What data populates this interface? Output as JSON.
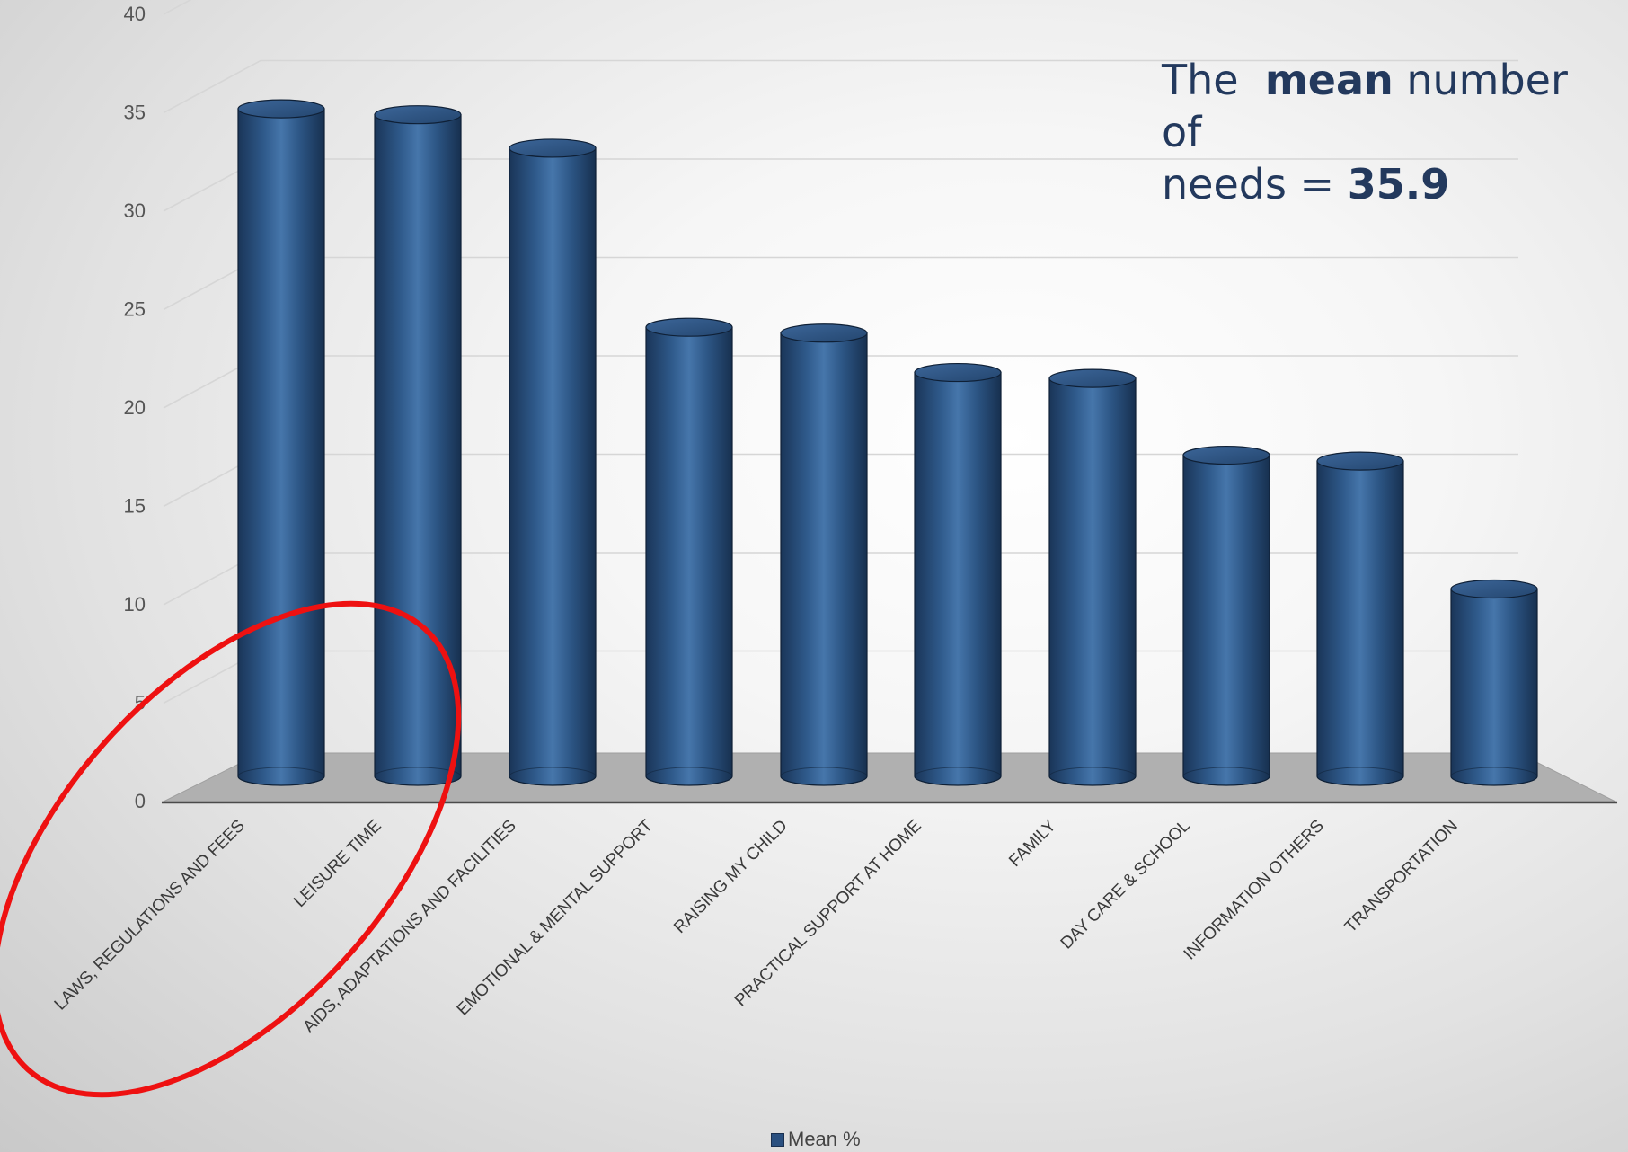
{
  "chart_data": {
    "type": "bar",
    "style": "3d-cylinder",
    "categories": [
      "LAWS, REGULATIONS AND FEES",
      "LEISURE TIME",
      "AIDS, ADAPTATIONS AND FACILITIES",
      "EMOTIONAL & MENTAL SUPPORT",
      "RAISING MY CHILD",
      "PRACTICAL SUPPORT AT HOME",
      "FAMILY",
      "DAY CARE & SCHOOL",
      "INFORMATION OTHERS",
      "TRANSPORTATION"
    ],
    "series": [
      {
        "name": "Mean %",
        "values": [
          35.2,
          34.9,
          33.2,
          24.1,
          23.8,
          21.8,
          21.5,
          17.6,
          17.3,
          10.8
        ],
        "color": "#2e5a8c"
      }
    ],
    "ylim": [
      0,
      40
    ],
    "yticks": [
      0,
      5,
      10,
      15,
      20,
      25,
      30,
      35,
      40
    ],
    "grid": true,
    "legend_position": "bottom-center",
    "highlight": {
      "shape": "ellipse",
      "color": "#ee1111",
      "categories": [
        "LAWS, REGULATIONS AND FEES",
        "LEISURE TIME"
      ]
    }
  },
  "annotation": {
    "line1_prefix": "The",
    "line1_bold": "mean",
    "line1_suffix": "number of",
    "line2_prefix": "needs =",
    "line2_bold": "35.9"
  },
  "legend": {
    "label": "Mean %"
  }
}
